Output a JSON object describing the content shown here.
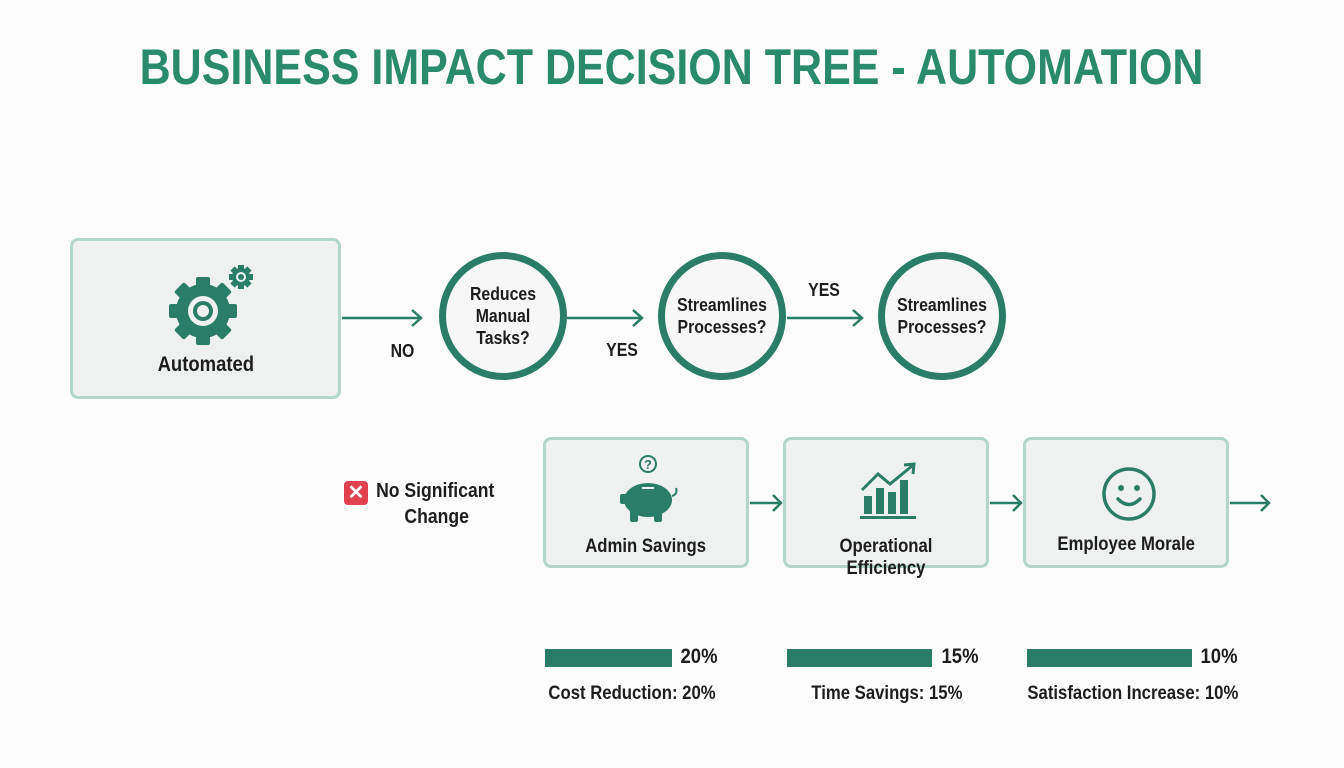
{
  "title": "BUSINESS IMPACT DECISION TREE - AUTOMATION",
  "colors": {
    "accent": "#2a7d66",
    "title": "#2a8a6c",
    "box_border": "#b3d6ca",
    "negative": "#e0424f"
  },
  "start_node": {
    "label": "Automated",
    "icon": "gears-icon"
  },
  "decisions": [
    {
      "label": "Reduces Manual Tasks?"
    },
    {
      "label": "Streamlines Processes?"
    },
    {
      "label": "Streamlines Processes?"
    }
  ],
  "edge_labels": {
    "no": "NO",
    "yes1": "YES",
    "yes2": "YES"
  },
  "negative_outcome": {
    "line1": "No Significant",
    "line2": "Change",
    "icon": "x-mark-icon"
  },
  "outcomes": [
    {
      "label": "Admin Savings",
      "icon": "piggy-bank-icon",
      "percent_label": "20%",
      "value": 20,
      "caption": "Cost Reduction: 20%"
    },
    {
      "label": "Operational Efficiency",
      "icon": "growth-chart-icon",
      "percent_label": "15%",
      "value": 15,
      "caption": "Time Savings: 15%"
    },
    {
      "label": "Employee Morale",
      "icon": "smiley-icon",
      "percent_label": "10%",
      "value": 10,
      "caption": "Satisfaction Increase: 10%"
    }
  ]
}
